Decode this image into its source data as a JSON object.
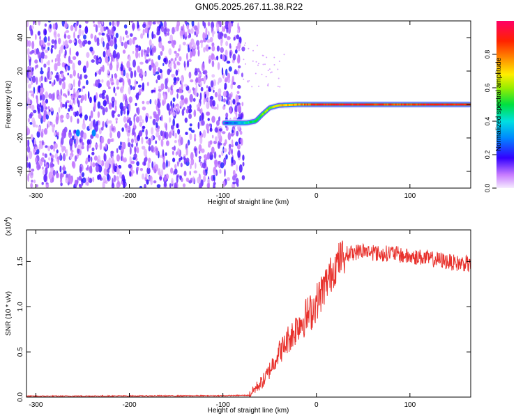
{
  "title": "GN05.2025.267.11.38.R22",
  "colors": {
    "signal_line": "#e8312c",
    "noise_purple": "#6a14e0",
    "axis": "#000000"
  },
  "chart_data": [
    {
      "type": "heatmap",
      "name": "spectrogram",
      "xlabel": "Height of straight line (km)",
      "ylabel": "Frequency (Hz)",
      "xlim": [
        -310,
        165
      ],
      "ylim": [
        -50,
        50
      ],
      "xticks": [
        -300,
        -200,
        -100,
        0,
        100
      ],
      "yticks": [
        -40,
        -20,
        0,
        20,
        40
      ],
      "colorbar": {
        "label": "Normalized spectral amplitude",
        "range": [
          0,
          1
        ],
        "ticks": [
          0.0,
          0.2,
          0.4,
          0.6,
          0.8
        ],
        "tick_labels": [
          "0.0",
          "0.2",
          "0.4",
          "0.6",
          "0.8"
        ]
      },
      "noise_region_x": [
        -310,
        -78
      ],
      "trace": {
        "x": [
          -98,
          -85,
          -75,
          -65,
          -58,
          -50,
          -40,
          -20,
          0,
          40,
          80,
          120,
          165
        ],
        "freq": [
          -11,
          -11,
          -11,
          -10,
          -6,
          -2,
          -0.5,
          0,
          0,
          0,
          0,
          0,
          0
        ],
        "amplitude": [
          0.2,
          0.3,
          0.4,
          0.5,
          0.55,
          0.6,
          0.7,
          0.75,
          0.9,
          0.9,
          0.85,
          0.9,
          0.9
        ]
      }
    },
    {
      "type": "line",
      "name": "snr",
      "xlabel": "Height of straight line (km)",
      "ylabel": "SNR (10 * v/v)",
      "scale_label": "(x10",
      "scale_exp": "4",
      "xlim": [
        -310,
        165
      ],
      "ylim": [
        0,
        1.85
      ],
      "xticks": [
        -300,
        -200,
        -100,
        0,
        100
      ],
      "yticks": [
        0.0,
        0.5,
        1.0,
        1.5
      ],
      "ytick_labels": [
        "0.0",
        "0.5",
        "1.0",
        "1.5"
      ],
      "series": [
        {
          "name": "SNR",
          "x": [
            -310,
            -100,
            -72,
            -65,
            -60,
            -55,
            -50,
            -45,
            -40,
            -35,
            -30,
            -25,
            -20,
            -15,
            -10,
            -5,
            0,
            5,
            10,
            15,
            20,
            25,
            30,
            40,
            50,
            60,
            70,
            80,
            90,
            100,
            110,
            120,
            130,
            140,
            150,
            160,
            165
          ],
          "y": [
            0.01,
            0.015,
            0.02,
            0.1,
            0.15,
            0.2,
            0.3,
            0.4,
            0.5,
            0.55,
            0.65,
            0.7,
            0.8,
            0.85,
            0.9,
            0.95,
            1.05,
            1.15,
            1.25,
            1.35,
            1.45,
            1.52,
            1.58,
            1.6,
            1.62,
            1.6,
            1.58,
            1.6,
            1.57,
            1.55,
            1.55,
            1.53,
            1.52,
            1.5,
            1.48,
            1.48,
            1.45
          ]
        }
      ]
    }
  ]
}
